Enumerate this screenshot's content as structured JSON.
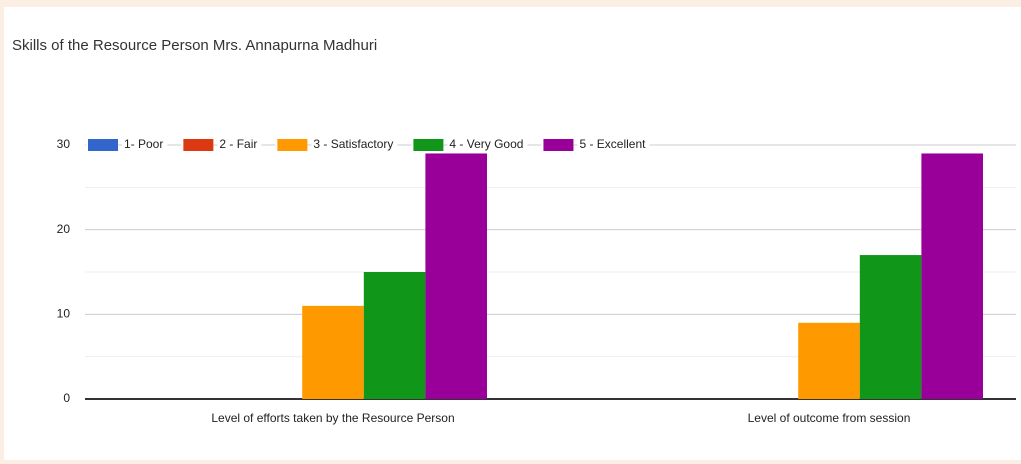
{
  "chart_data": {
    "type": "bar",
    "title": "Skills of the Resource Person Mrs. Annapurna Madhuri",
    "categories": [
      "Level of efforts taken by the Resource Person",
      "Level of outcome from session"
    ],
    "series": [
      {
        "name": "1- Poor",
        "color": "#3366cc",
        "values": [
          0,
          0
        ]
      },
      {
        "name": "2 - Fair",
        "color": "#dc3912",
        "values": [
          0,
          0
        ]
      },
      {
        "name": "3 - Satisfactory",
        "color": "#ff9900",
        "values": [
          11,
          9
        ]
      },
      {
        "name": "4 - Very Good",
        "color": "#109618",
        "values": [
          15,
          17
        ]
      },
      {
        "name": "5 - Excellent",
        "color": "#990099",
        "values": [
          29,
          29
        ]
      }
    ],
    "ylim": [
      0,
      30
    ],
    "yticks": [
      0,
      10,
      20,
      30
    ],
    "grid": true,
    "minor_grid": true,
    "legend": "top"
  }
}
